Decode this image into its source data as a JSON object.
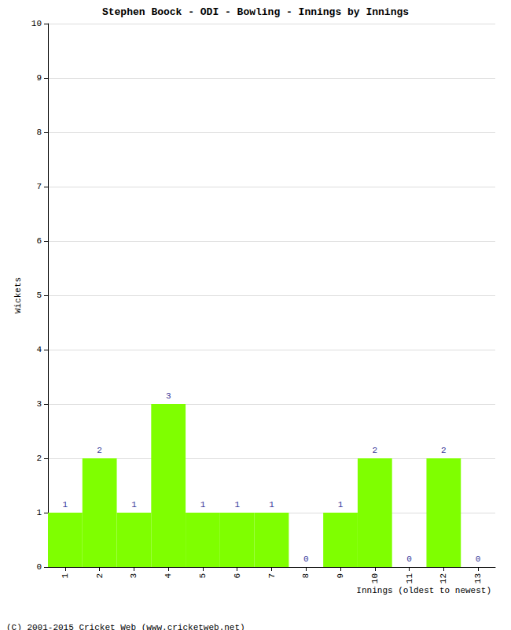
{
  "chart_data": {
    "type": "bar",
    "title": "Stephen Boock - ODI - Bowling - Innings by Innings",
    "x_label": "Innings (oldest to newest)",
    "y_label": "Wickets",
    "annotations": [
      "(C) 2001-2015 Cricket Web (www.cricketweb.net)"
    ],
    "categories": [
      "1",
      "2",
      "3",
      "4",
      "5",
      "6",
      "7",
      "8",
      "9",
      "10",
      "11",
      "12",
      "13"
    ],
    "values": [
      1,
      2,
      1,
      3,
      1,
      1,
      1,
      0,
      1,
      2,
      0,
      2,
      0
    ],
    "color": "#7fff00",
    "ylim": [
      0,
      10
    ],
    "yticks": [
      0,
      1,
      2,
      3,
      4,
      5,
      6,
      7,
      8,
      9,
      10
    ],
    "grid": true,
    "data_labels": true
  }
}
